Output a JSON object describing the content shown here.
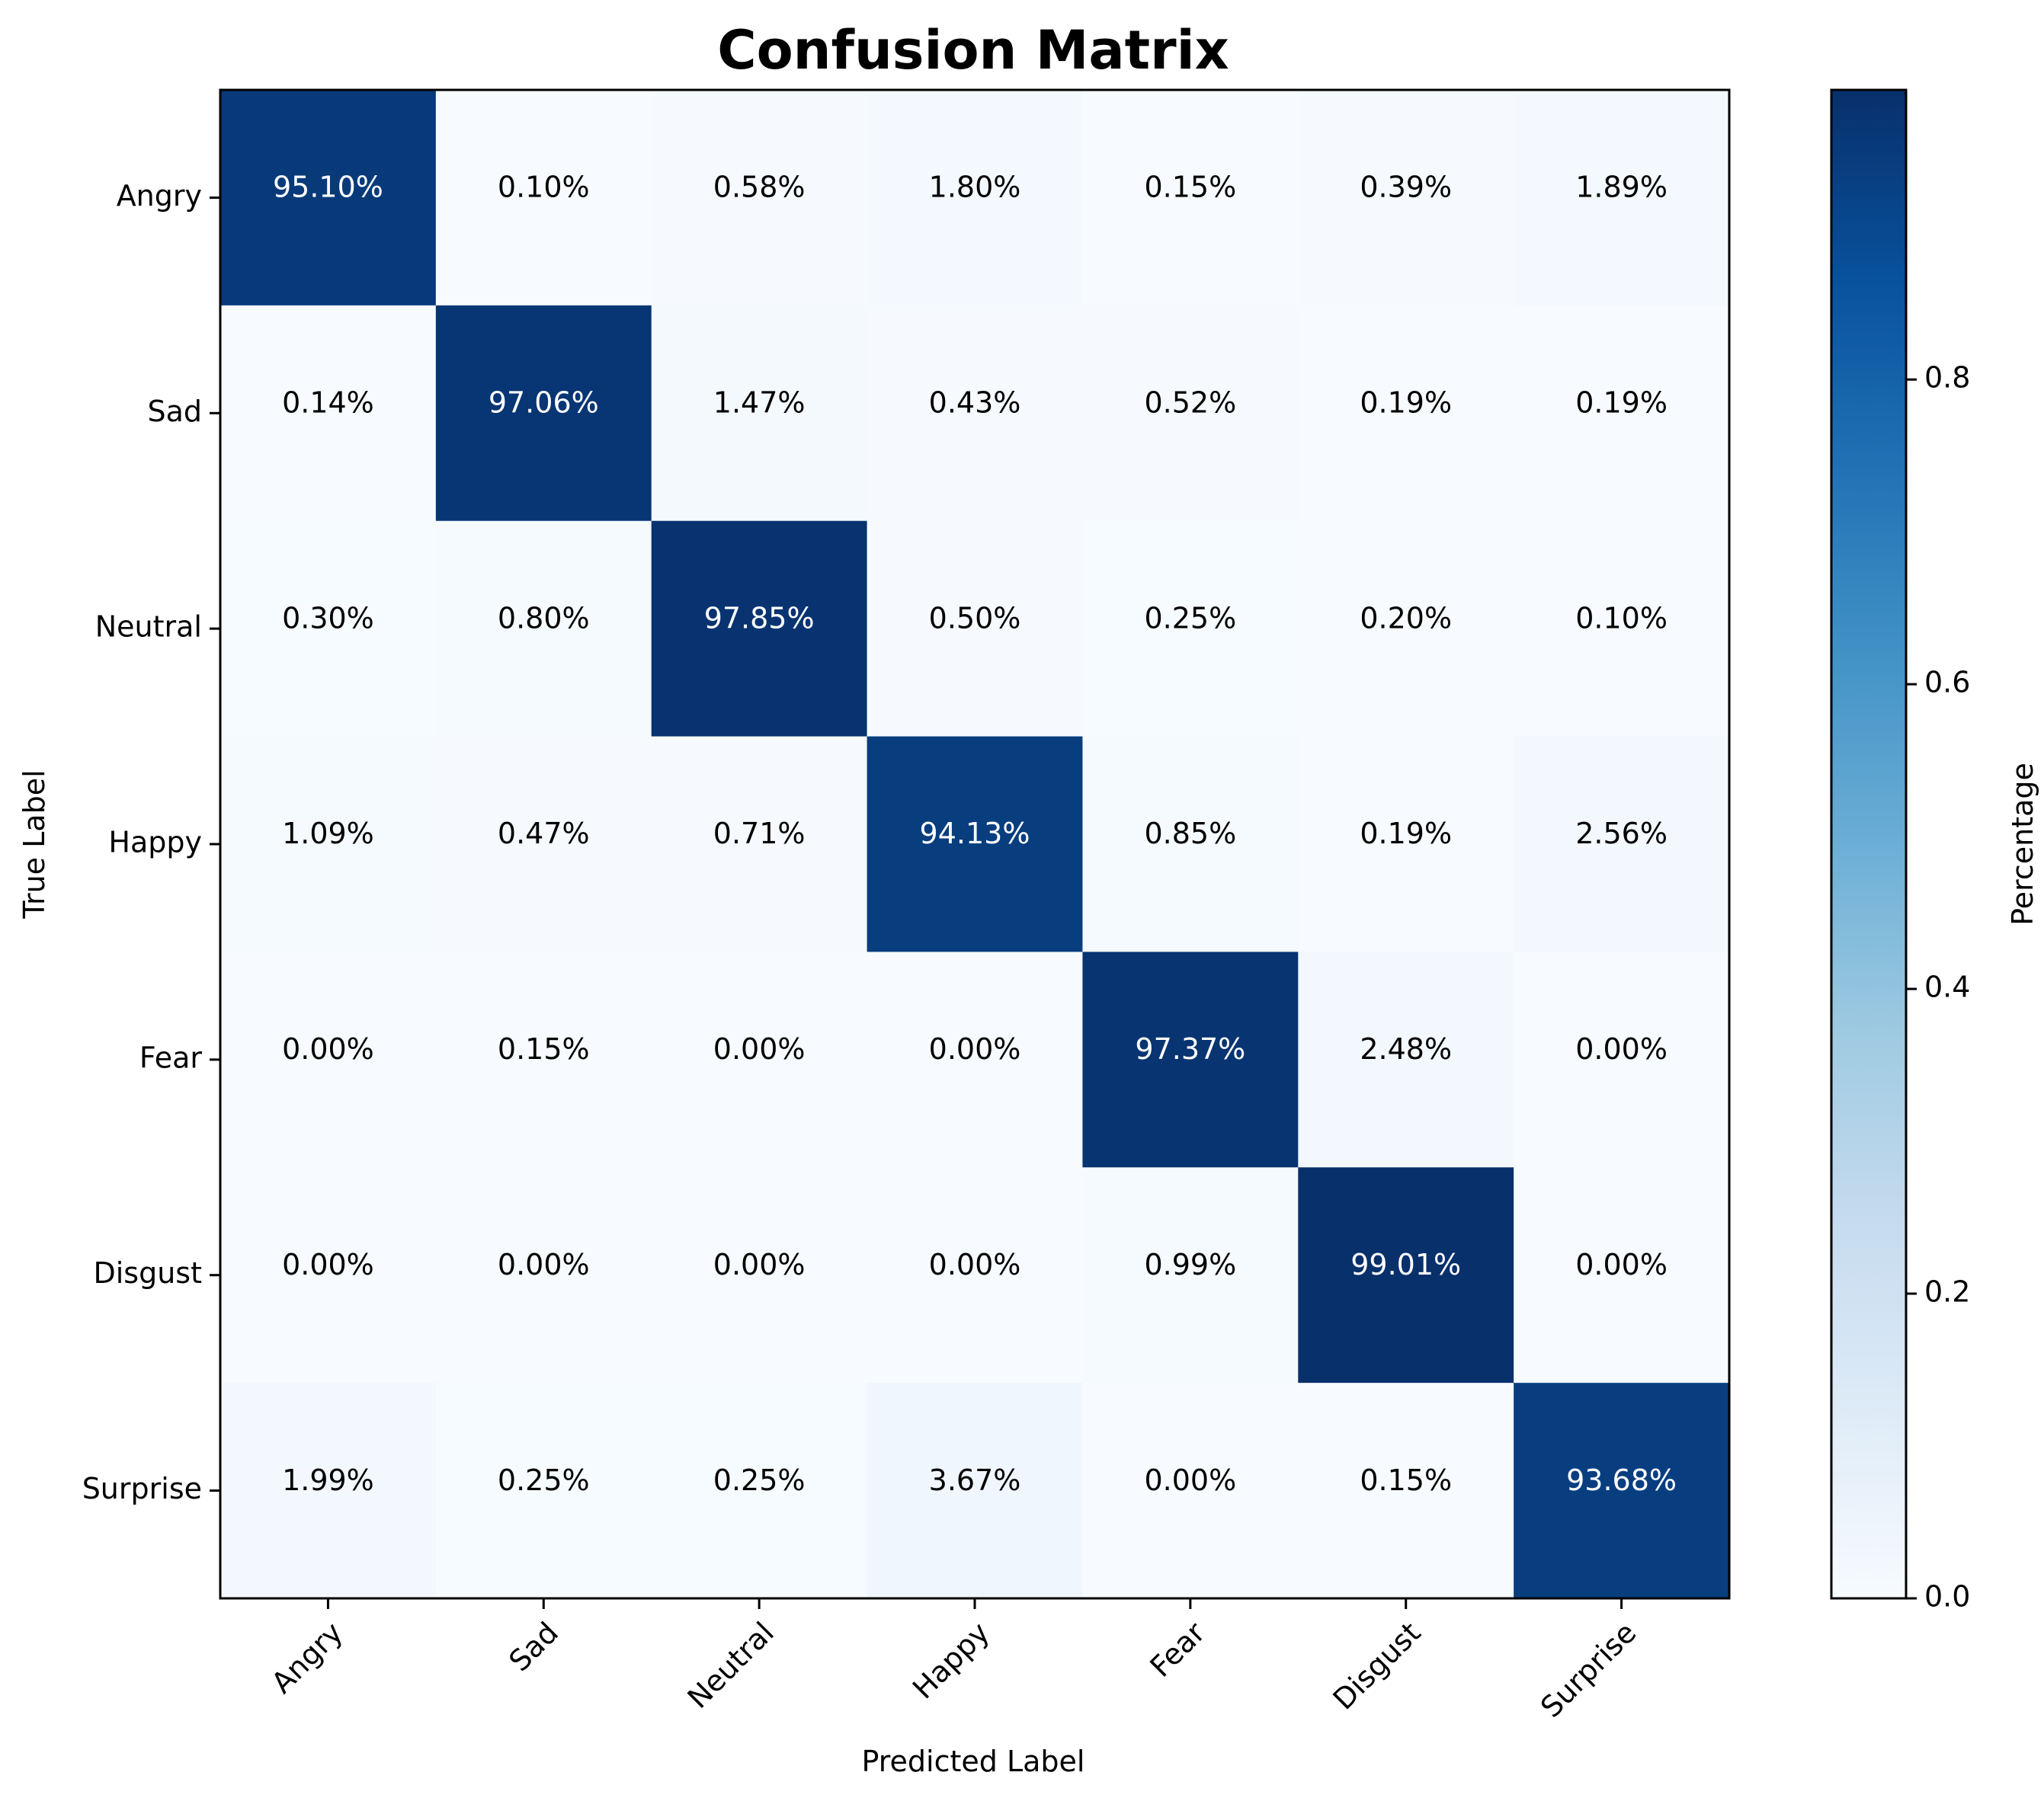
{
  "chart_data": {
    "type": "heatmap",
    "title": "Confusion Matrix",
    "xlabel": "Predicted Label",
    "ylabel": "True Label",
    "x_categories": [
      "Angry",
      "Sad",
      "Neutral",
      "Happy",
      "Fear",
      "Disgust",
      "Surprise"
    ],
    "y_categories": [
      "Angry",
      "Sad",
      "Neutral",
      "Happy",
      "Fear",
      "Disgust",
      "Surprise"
    ],
    "values": [
      [
        0.951,
        0.001,
        0.0058,
        0.018,
        0.0015,
        0.0039,
        0.0189
      ],
      [
        0.0014,
        0.9706,
        0.0147,
        0.0043,
        0.0052,
        0.0019,
        0.0019
      ],
      [
        0.003,
        0.008,
        0.9785,
        0.005,
        0.0025,
        0.002,
        0.001
      ],
      [
        0.0109,
        0.0047,
        0.0071,
        0.9413,
        0.0085,
        0.0019,
        0.0256
      ],
      [
        0.0,
        0.0015,
        0.0,
        0.0,
        0.9737,
        0.0248,
        0.0
      ],
      [
        0.0,
        0.0,
        0.0,
        0.0,
        0.0099,
        0.9901,
        0.0
      ],
      [
        0.0199,
        0.0025,
        0.0025,
        0.0367,
        0.0,
        0.0015,
        0.9368
      ]
    ],
    "cell_labels": [
      [
        "95.10%",
        "0.10%",
        "0.58%",
        "1.80%",
        "0.15%",
        "0.39%",
        "1.89%"
      ],
      [
        "0.14%",
        "97.06%",
        "1.47%",
        "0.43%",
        "0.52%",
        "0.19%",
        "0.19%"
      ],
      [
        "0.30%",
        "0.80%",
        "97.85%",
        "0.50%",
        "0.25%",
        "0.20%",
        "0.10%"
      ],
      [
        "1.09%",
        "0.47%",
        "0.71%",
        "94.13%",
        "0.85%",
        "0.19%",
        "2.56%"
      ],
      [
        "0.00%",
        "0.15%",
        "0.00%",
        "0.00%",
        "97.37%",
        "2.48%",
        "0.00%"
      ],
      [
        "0.00%",
        "0.00%",
        "0.00%",
        "0.00%",
        "0.99%",
        "99.01%",
        "0.00%"
      ],
      [
        "1.99%",
        "0.25%",
        "0.25%",
        "3.67%",
        "0.00%",
        "0.15%",
        "93.68%"
      ]
    ],
    "colormap": "Blues",
    "color_range": [
      0,
      0.9901
    ],
    "colorbar": {
      "label": "Percentage",
      "ticks": [
        0.0,
        0.2,
        0.4,
        0.6,
        0.8
      ],
      "tick_labels": [
        "0.0",
        "0.2",
        "0.4",
        "0.6",
        "0.8"
      ]
    },
    "grid": false,
    "legend": "none"
  }
}
